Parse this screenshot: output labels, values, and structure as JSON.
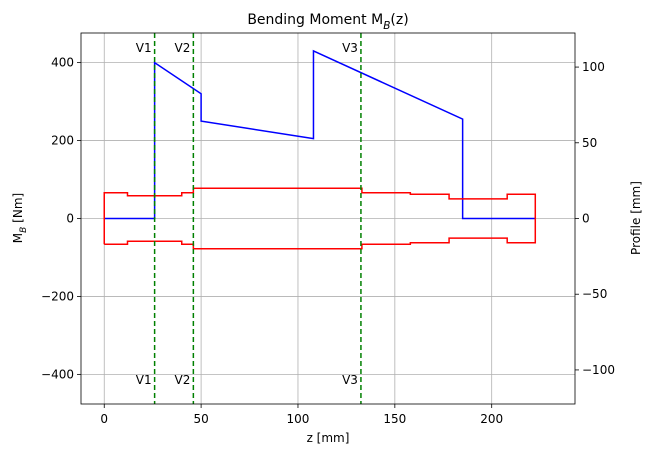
{
  "chart_data": {
    "type": "line",
    "title": "Bending Moment M_B(z)",
    "xlabel": "z [mm]",
    "ylabel": "M_B [Nm]",
    "y2label": "Profile [mm]",
    "xlim": [
      -12,
      243
    ],
    "ylim": [
      -476,
      476
    ],
    "y2lim": [
      -122.5,
      122.5
    ],
    "xticks": [
      0,
      50,
      100,
      150,
      200
    ],
    "yticks": [
      {
        "value": -400,
        "label": "−400"
      },
      {
        "value": -200,
        "label": "−200"
      },
      0,
      200,
      400
    ],
    "y2ticks": [
      {
        "value": -100,
        "label": "−100"
      },
      {
        "value": -50,
        "label": "−50"
      },
      0,
      50,
      100
    ],
    "grid": true,
    "series": [
      {
        "color": "#0000ff",
        "x": [
          0,
          26,
          26,
          50,
          50,
          108,
          108,
          185,
          185,
          222.5
        ],
        "values": [
          0,
          0,
          400,
          320,
          250,
          205,
          430,
          255,
          0,
          0
        ]
      },
      {
        "color": "#ff0000",
        "axis": "y2",
        "x": [
          0,
          0,
          12,
          12,
          40,
          40,
          46,
          46,
          133,
          133,
          158,
          158,
          178,
          178,
          208,
          208,
          222.5,
          222.5,
          208,
          208,
          178,
          178,
          158,
          158,
          133,
          133,
          46,
          46,
          40,
          40,
          12,
          12,
          0
        ],
        "values": [
          -17,
          17,
          17,
          15,
          15,
          17,
          17,
          20,
          20,
          17,
          17,
          16,
          16,
          13,
          13,
          16,
          16,
          -16,
          -16,
          -13,
          -13,
          -16,
          -16,
          -17,
          -17,
          -20,
          -20,
          -17,
          -17,
          -15,
          -15,
          -17,
          -17
        ]
      }
    ],
    "vlines": [
      {
        "x": 26,
        "label": "V1"
      },
      {
        "x": 46,
        "label": "V2"
      },
      {
        "x": 132.5,
        "label": "V3"
      }
    ],
    "vline_color": "#008000"
  }
}
